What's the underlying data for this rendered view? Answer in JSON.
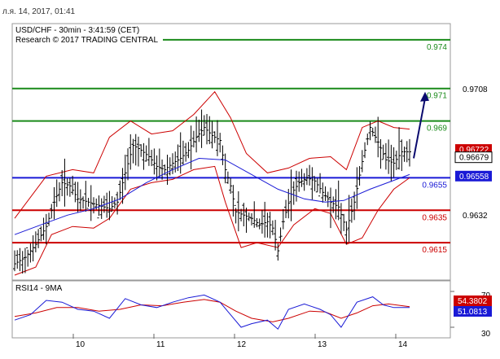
{
  "header": {
    "date_line": "л.я. 14, 2017, 01:41"
  },
  "chart": {
    "title_line1": "USD/CHF - 30min - 3:41:59 (CET)",
    "title_line2": "Research © 2017 TRADING CENTRAL",
    "x_labels": [
      "10",
      "11",
      "12",
      "13",
      "14"
    ],
    "axis_prices": [
      "0.9708",
      "0.9632"
    ],
    "badges": [
      {
        "text": "0.96722",
        "color": "#cc0000"
      },
      {
        "text": "0.96679",
        "color": "#ffffff"
      },
      {
        "text": "0.96558",
        "color": "#1a1ad6"
      }
    ]
  },
  "rsi_panel": {
    "title": "RSI14 - 9MA",
    "axis_labels": [
      "70",
      "30"
    ],
    "badges": [
      {
        "text": "54.3802",
        "color": "#cc0000"
      },
      {
        "text": "51.0813",
        "color": "#1a1ad6"
      }
    ]
  },
  "colors": {
    "resistance": "#1a8a1a",
    "support": "#cc0000",
    "pivot": "#1a1ad6",
    "bollinger": "#cc0000",
    "moving_average": "#1a1ad6",
    "bars": "#000000",
    "arrow": "#0a0a6e"
  },
  "chart_data": [
    {
      "type": "line",
      "description_series": [
        "USD/CHF price (OHLC bars)",
        "Bollinger bands",
        "moving average"
      ],
      "x_categories": [
        "10",
        "11",
        "12",
        "13",
        "14"
      ],
      "levels": [
        {
          "label": "0.974",
          "value": 0.974,
          "role": "resistance"
        },
        {
          "label": "0.971",
          "value": 0.971,
          "role": "resistance"
        },
        {
          "label": "0.969",
          "value": 0.969,
          "role": "resistance"
        },
        {
          "label": "0.9655",
          "value": 0.9655,
          "role": "pivot"
        },
        {
          "label": "0.9635",
          "value": 0.9635,
          "role": "support"
        },
        {
          "label": "0.9615",
          "value": 0.9615,
          "role": "support"
        }
      ],
      "price_path": [
        [
          0,
          0.9602
        ],
        [
          4,
          0.9606
        ],
        [
          8,
          0.9614
        ],
        [
          12,
          0.9625
        ],
        [
          15,
          0.964
        ],
        [
          18,
          0.9652
        ],
        [
          21,
          0.965
        ],
        [
          24,
          0.9642
        ],
        [
          28,
          0.964
        ],
        [
          32,
          0.9638
        ],
        [
          36,
          0.9636
        ],
        [
          39,
          0.964
        ],
        [
          42,
          0.9658
        ],
        [
          45,
          0.9675
        ],
        [
          48,
          0.9672
        ],
        [
          51,
          0.9668
        ],
        [
          54,
          0.9662
        ],
        [
          57,
          0.966
        ],
        [
          60,
          0.9664
        ],
        [
          63,
          0.9667
        ],
        [
          66,
          0.9672
        ],
        [
          69,
          0.968
        ],
        [
          72,
          0.9686
        ],
        [
          75,
          0.9681
        ],
        [
          78,
          0.9678
        ],
        [
          80,
          0.966
        ],
        [
          82,
          0.965
        ],
        [
          84,
          0.9634
        ],
        [
          87,
          0.9632
        ],
        [
          90,
          0.963
        ],
        [
          93,
          0.9626
        ],
        [
          96,
          0.9628
        ],
        [
          98,
          0.9624
        ],
        [
          100,
          0.961
        ],
        [
          102,
          0.9628
        ],
        [
          105,
          0.9645
        ],
        [
          108,
          0.9652
        ],
        [
          111,
          0.9655
        ],
        [
          114,
          0.9653
        ],
        [
          117,
          0.9646
        ],
        [
          120,
          0.964
        ],
        [
          123,
          0.9637
        ],
        [
          126,
          0.9623
        ],
        [
          129,
          0.964
        ],
        [
          132,
          0.9665
        ],
        [
          135,
          0.9686
        ],
        [
          138,
          0.9677
        ],
        [
          141,
          0.9666
        ],
        [
          144,
          0.9664
        ],
        [
          147,
          0.9671
        ],
        [
          150,
          0.9671
        ]
      ],
      "moving_average_path": [
        [
          0,
          0.962
        ],
        [
          10,
          0.9626
        ],
        [
          20,
          0.9632
        ],
        [
          30,
          0.9636
        ],
        [
          40,
          0.9642
        ],
        [
          50,
          0.9652
        ],
        [
          60,
          0.966
        ],
        [
          70,
          0.9667
        ],
        [
          80,
          0.9666
        ],
        [
          90,
          0.9657
        ],
        [
          100,
          0.9648
        ],
        [
          110,
          0.9642
        ],
        [
          118,
          0.964
        ],
        [
          125,
          0.9641
        ],
        [
          135,
          0.9648
        ],
        [
          145,
          0.9654
        ],
        [
          150,
          0.9657
        ]
      ],
      "bollinger_upper_path": [
        [
          0,
          0.963
        ],
        [
          12,
          0.9656
        ],
        [
          22,
          0.966
        ],
        [
          30,
          0.9658
        ],
        [
          36,
          0.968
        ],
        [
          44,
          0.969
        ],
        [
          52,
          0.9682
        ],
        [
          60,
          0.9684
        ],
        [
          68,
          0.9694
        ],
        [
          76,
          0.9708
        ],
        [
          82,
          0.9692
        ],
        [
          88,
          0.967
        ],
        [
          96,
          0.9658
        ],
        [
          104,
          0.9661
        ],
        [
          112,
          0.9667
        ],
        [
          120,
          0.9668
        ],
        [
          126,
          0.966
        ],
        [
          132,
          0.9686
        ],
        [
          138,
          0.969
        ],
        [
          144,
          0.9686
        ],
        [
          150,
          0.9685
        ]
      ],
      "bollinger_lower_path": [
        [
          0,
          0.9595
        ],
        [
          8,
          0.96
        ],
        [
          14,
          0.962
        ],
        [
          22,
          0.9625
        ],
        [
          30,
          0.9624
        ],
        [
          36,
          0.963
        ],
        [
          44,
          0.9648
        ],
        [
          52,
          0.9652
        ],
        [
          60,
          0.9654
        ],
        [
          68,
          0.966
        ],
        [
          76,
          0.9662
        ],
        [
          80,
          0.964
        ],
        [
          86,
          0.9612
        ],
        [
          92,
          0.9615
        ],
        [
          100,
          0.9612
        ],
        [
          106,
          0.9626
        ],
        [
          114,
          0.9636
        ],
        [
          120,
          0.9633
        ],
        [
          126,
          0.9614
        ],
        [
          132,
          0.9618
        ],
        [
          138,
          0.9635
        ],
        [
          144,
          0.9648
        ],
        [
          150,
          0.9655
        ]
      ],
      "forecast_arrow": {
        "from": 0.9667,
        "to": 0.9708
      },
      "y_range": [
        0.9592,
        0.975
      ]
    },
    {
      "type": "line",
      "title": "RSI14 - 9MA",
      "y_range": [
        20,
        80
      ],
      "ticks": [
        70,
        30
      ],
      "rsi_path": [
        [
          0,
          38
        ],
        [
          6,
          44
        ],
        [
          12,
          60
        ],
        [
          18,
          58
        ],
        [
          24,
          50
        ],
        [
          30,
          48
        ],
        [
          36,
          40
        ],
        [
          42,
          62
        ],
        [
          48,
          55
        ],
        [
          54,
          52
        ],
        [
          60,
          58
        ],
        [
          66,
          63
        ],
        [
          72,
          66
        ],
        [
          78,
          58
        ],
        [
          82,
          44
        ],
        [
          86,
          30
        ],
        [
          90,
          34
        ],
        [
          96,
          38
        ],
        [
          100,
          28
        ],
        [
          104,
          50
        ],
        [
          110,
          56
        ],
        [
          116,
          50
        ],
        [
          120,
          44
        ],
        [
          124,
          30
        ],
        [
          130,
          58
        ],
        [
          136,
          64
        ],
        [
          140,
          55
        ],
        [
          144,
          52
        ],
        [
          150,
          52
        ]
      ],
      "ma_path": [
        [
          0,
          42
        ],
        [
          8,
          46
        ],
        [
          16,
          52
        ],
        [
          24,
          52
        ],
        [
          32,
          48
        ],
        [
          40,
          50
        ],
        [
          48,
          55
        ],
        [
          56,
          54
        ],
        [
          64,
          58
        ],
        [
          72,
          61
        ],
        [
          78,
          58
        ],
        [
          84,
          48
        ],
        [
          90,
          40
        ],
        [
          98,
          36
        ],
        [
          104,
          40
        ],
        [
          112,
          48
        ],
        [
          118,
          47
        ],
        [
          124,
          40
        ],
        [
          130,
          46
        ],
        [
          136,
          54
        ],
        [
          142,
          56
        ],
        [
          150,
          53
        ]
      ]
    }
  ]
}
